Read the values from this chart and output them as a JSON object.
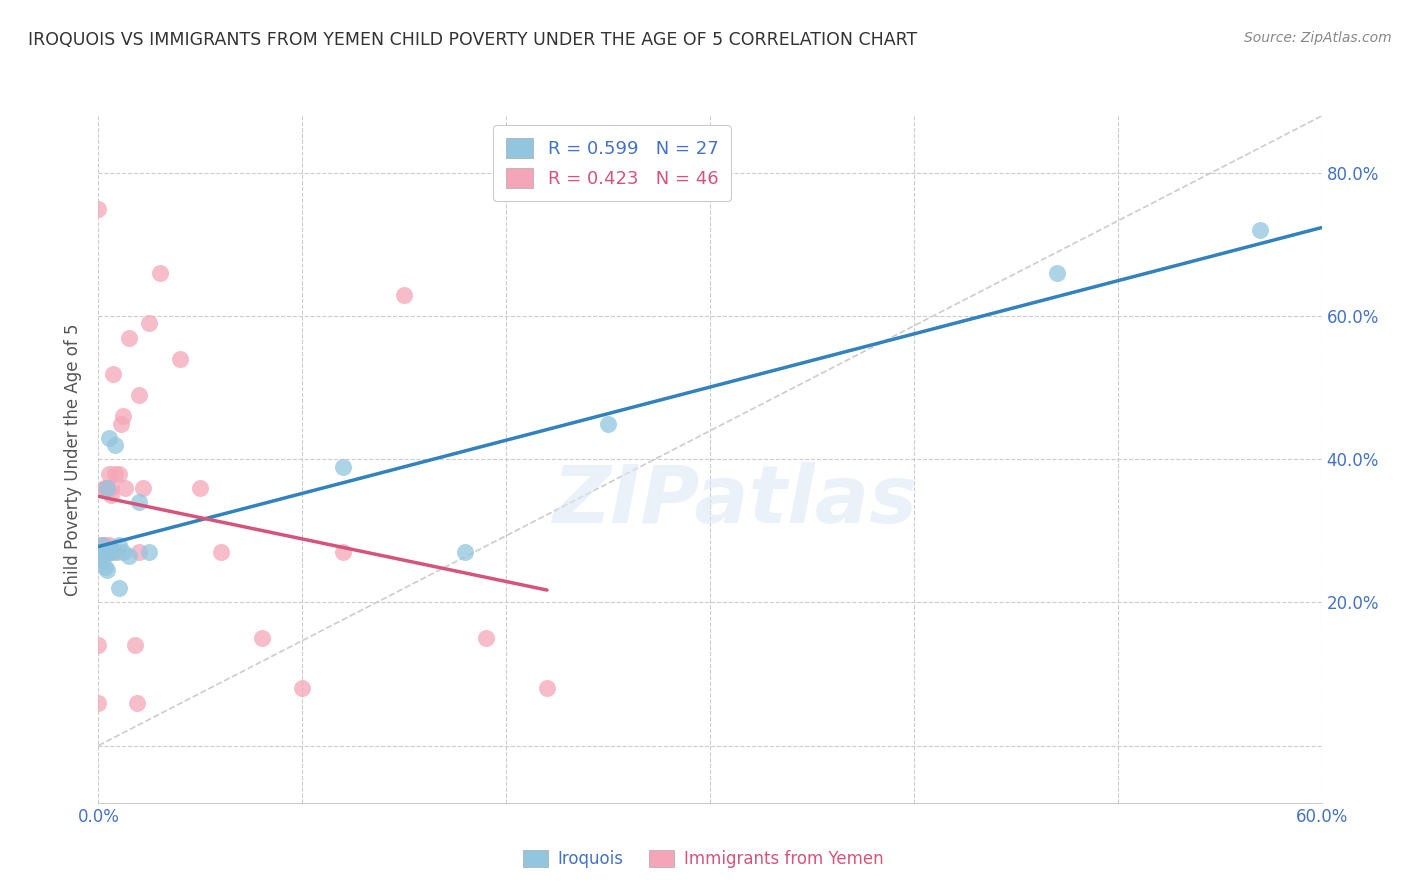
{
  "title": "IROQUOIS VS IMMIGRANTS FROM YEMEN CHILD POVERTY UNDER THE AGE OF 5 CORRELATION CHART",
  "source": "Source: ZipAtlas.com",
  "ylabel": "Child Poverty Under the Age of 5",
  "xlim": [
    0.0,
    0.6
  ],
  "ylim": [
    -0.08,
    0.88
  ],
  "yticks": [
    0.0,
    0.2,
    0.4,
    0.6,
    0.8
  ],
  "xticks": [
    0.0,
    0.1,
    0.2,
    0.3,
    0.4,
    0.5,
    0.6
  ],
  "xtick_labels_show": [
    "0.0%",
    "60.0%"
  ],
  "xtick_labels_pos": [
    0.0,
    0.6
  ],
  "ytick_labels": [
    "20.0%",
    "40.0%",
    "60.0%",
    "80.0%"
  ],
  "ytick_vals": [
    0.2,
    0.4,
    0.6,
    0.8
  ],
  "iroquois_R": 0.599,
  "iroquois_N": 27,
  "yemen_R": 0.423,
  "yemen_N": 46,
  "iroquois_color": "#92c5de",
  "yemen_color": "#f4a6b8",
  "iroquois_line_color": "#3182bd",
  "yemen_line_color": "#d6547a",
  "diagonal_line_color": "#cccccc",
  "background_color": "#ffffff",
  "grid_color": "#cccccc",
  "watermark_text": "ZIPatlas",
  "iroquois_x": [
    0.001,
    0.001,
    0.002,
    0.003,
    0.004,
    0.005,
    0.006,
    0.008,
    0.01,
    0.012,
    0.015,
    0.02,
    0.025,
    0.12,
    0.18,
    0.25,
    0.47,
    0.57,
    0.0,
    0.0,
    0.002,
    0.002,
    0.003,
    0.004,
    0.005,
    0.007,
    0.01
  ],
  "iroquois_y": [
    0.27,
    0.265,
    0.28,
    0.25,
    0.245,
    0.43,
    0.27,
    0.42,
    0.28,
    0.27,
    0.265,
    0.34,
    0.27,
    0.39,
    0.27,
    0.45,
    0.66,
    0.72,
    0.27,
    0.265,
    0.27,
    0.26,
    0.27,
    0.36,
    0.27,
    0.27,
    0.22
  ],
  "yemen_x": [
    0.0,
    0.0,
    0.0,
    0.0,
    0.001,
    0.001,
    0.001,
    0.001,
    0.002,
    0.002,
    0.002,
    0.002,
    0.003,
    0.003,
    0.003,
    0.004,
    0.004,
    0.005,
    0.005,
    0.006,
    0.006,
    0.007,
    0.008,
    0.009,
    0.01,
    0.011,
    0.012,
    0.013,
    0.015,
    0.018,
    0.019,
    0.02,
    0.02,
    0.022,
    0.025,
    0.03,
    0.04,
    0.05,
    0.06,
    0.08,
    0.1,
    0.12,
    0.15,
    0.19,
    0.22,
    0.0
  ],
  "yemen_y": [
    0.27,
    0.27,
    0.14,
    0.06,
    0.27,
    0.27,
    0.27,
    0.27,
    0.28,
    0.28,
    0.27,
    0.27,
    0.36,
    0.36,
    0.28,
    0.36,
    0.36,
    0.38,
    0.28,
    0.35,
    0.36,
    0.52,
    0.38,
    0.27,
    0.38,
    0.45,
    0.46,
    0.36,
    0.57,
    0.14,
    0.06,
    0.27,
    0.49,
    0.36,
    0.59,
    0.66,
    0.54,
    0.36,
    0.27,
    0.15,
    0.08,
    0.27,
    0.63,
    0.15,
    0.08,
    0.75
  ]
}
